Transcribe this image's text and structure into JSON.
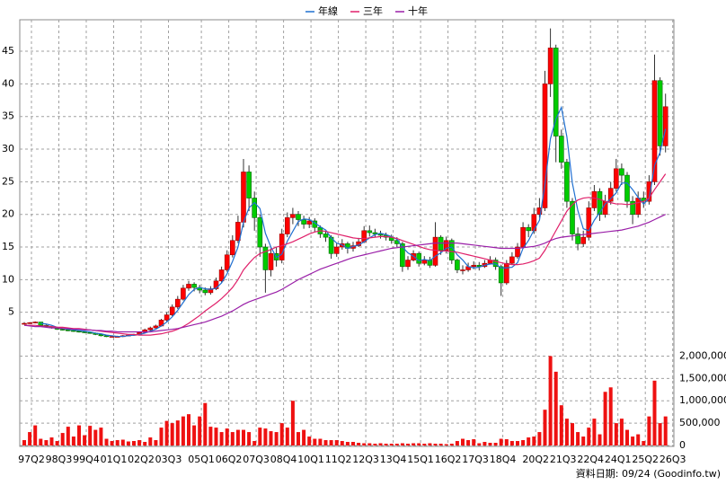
{
  "chart_data": {
    "type": "candlestick",
    "source": "資料日期: 09/24 (Goodinfo.tw)",
    "legend": "top",
    "grid": true,
    "up_color": "#ff0000",
    "down_color": "#00cc00",
    "categories": [
      "97Q2",
      null,
      null,
      null,
      null,
      "98Q3",
      null,
      null,
      null,
      null,
      "99Q4",
      null,
      null,
      null,
      null,
      "01Q1",
      null,
      null,
      null,
      null,
      "02Q2",
      null,
      null,
      null,
      null,
      "03Q3",
      null,
      null,
      null,
      null,
      null,
      "05Q1",
      null,
      null,
      null,
      null,
      "06Q2",
      null,
      null,
      null,
      null,
      "07Q3",
      null,
      null,
      null,
      null,
      "08Q4",
      null,
      null,
      null,
      null,
      "10Q1",
      null,
      null,
      null,
      null,
      "11Q2",
      null,
      null,
      null,
      null,
      "12Q3",
      null,
      null,
      null,
      null,
      "13Q4",
      null,
      null,
      null,
      null,
      "15Q1",
      null,
      null,
      null,
      null,
      "16Q2",
      null,
      null,
      null,
      null,
      "17Q3",
      null,
      null,
      null,
      null,
      "18Q4",
      null,
      null,
      null,
      null,
      null,
      "20Q2",
      null,
      null,
      null,
      null,
      "21Q3",
      null,
      null,
      null,
      null,
      "22Q4",
      null,
      null,
      null,
      null,
      "24Q1",
      null,
      null,
      null,
      null,
      "25Q2",
      null,
      null,
      null,
      null,
      "26Q3"
    ],
    "open": [
      3.2,
      3.3,
      3.4,
      3.5,
      3.0,
      2.8,
      2.6,
      2.4,
      2.3,
      2.2,
      2.1,
      2.0,
      1.9,
      1.8,
      1.6,
      1.4,
      1.3,
      1.3,
      1.3,
      1.4,
      1.5,
      1.6,
      1.9,
      2.3,
      2.6,
      2.9,
      3.8,
      4.6,
      5.8,
      7.0,
      8.7,
      9.3,
      8.8,
      8.4,
      8.0,
      8.6,
      9.8,
      11.5,
      13.8,
      16.0,
      18.8,
      26.5,
      22.5,
      19.5,
      15.0,
      11.5,
      14.0,
      13.0,
      17.0,
      19.5,
      20.0,
      19.2,
      18.5,
      19.0,
      18.0,
      17.0,
      16.5,
      14.0,
      15.0,
      15.5,
      14.8,
      15.2,
      15.8,
      17.5,
      17.2,
      17.0,
      16.8,
      16.5,
      16.0,
      15.5,
      12.0,
      13.0,
      14.0,
      12.5,
      13.0,
      12.2,
      16.5,
      14.5,
      16.0,
      13.0,
      11.5,
      11.5,
      12.0,
      12.2,
      12.0,
      12.5,
      13.0,
      12.0,
      9.5,
      12.5,
      13.5,
      15.0,
      18.0,
      17.5,
      20.0,
      21.0,
      40.0,
      45.5,
      32.0,
      28.0,
      22.0,
      17.0,
      15.5,
      16.5,
      21.0,
      23.5,
      20.0,
      22.0,
      24.0,
      27.0,
      26.0,
      22.0,
      20.0,
      22.5,
      22.0,
      25.0,
      40.5,
      30.5
    ],
    "high": [
      3.5,
      3.5,
      3.6,
      3.5,
      3.1,
      2.9,
      2.7,
      2.5,
      2.4,
      2.3,
      2.2,
      2.1,
      2.0,
      1.9,
      1.7,
      1.5,
      1.4,
      1.4,
      1.5,
      1.6,
      1.7,
      2.0,
      2.5,
      2.8,
      3.1,
      4.0,
      5.0,
      6.2,
      7.5,
      9.2,
      9.8,
      9.6,
      9.2,
      8.8,
      9.0,
      10.3,
      12.0,
      14.5,
      16.8,
      19.8,
      28.5,
      27.5,
      23.5,
      20.0,
      15.5,
      14.8,
      15.0,
      17.8,
      20.3,
      21.0,
      20.5,
      19.8,
      19.6,
      19.4,
      18.3,
      17.5,
      16.8,
      15.6,
      16.2,
      15.8,
      15.8,
      16.4,
      18.2,
      18.3,
      17.8,
      17.5,
      17.2,
      16.9,
      16.5,
      15.8,
      13.6,
      14.5,
      14.3,
      13.6,
      13.5,
      18.8,
      16.8,
      16.6,
      16.3,
      13.2,
      12.2,
      12.6,
      12.8,
      12.7,
      13.0,
      13.6,
      13.4,
      12.3,
      13.0,
      14.2,
      15.6,
      18.8,
      18.5,
      21.0,
      22.5,
      42.0,
      48.5,
      46.0,
      33.0,
      28.5,
      22.5,
      18.0,
      17.5,
      22.0,
      24.5,
      24.0,
      23.0,
      25.0,
      28.5,
      27.8,
      26.5,
      22.8,
      23.5,
      23.5,
      26.0,
      44.5,
      41.0,
      38.5
    ],
    "low": [
      3.1,
      3.2,
      3.3,
      2.9,
      2.7,
      2.5,
      2.3,
      2.2,
      2.1,
      2.0,
      1.9,
      1.8,
      1.7,
      1.5,
      1.3,
      1.2,
      1.2,
      1.2,
      1.2,
      1.3,
      1.4,
      1.5,
      1.8,
      2.2,
      2.5,
      2.8,
      3.6,
      4.4,
      5.5,
      6.8,
      8.3,
      8.2,
      7.9,
      7.6,
      7.7,
      8.4,
      9.5,
      11.2,
      13.4,
      15.6,
      18.0,
      20.5,
      17.5,
      13.5,
      8.0,
      10.5,
      12.0,
      12.5,
      16.5,
      18.5,
      18.2,
      17.8,
      17.9,
      17.3,
      16.4,
      15.8,
      13.2,
      13.5,
      14.6,
      14.0,
      14.3,
      15.0,
      15.6,
      16.6,
      16.5,
      16.3,
      16.0,
      15.5,
      15.0,
      11.2,
      11.5,
      12.8,
      12.0,
      12.2,
      11.8,
      12.0,
      13.8,
      14.0,
      12.4,
      11.0,
      10.8,
      11.2,
      11.6,
      11.4,
      11.8,
      12.3,
      11.5,
      7.5,
      9.2,
      12.3,
      13.2,
      14.8,
      16.5,
      17.0,
      19.5,
      20.5,
      38.0,
      28.0,
      27.0,
      21.0,
      16.0,
      14.5,
      15.0,
      16.0,
      20.5,
      19.0,
      19.5,
      21.5,
      23.5,
      24.5,
      21.0,
      18.5,
      19.5,
      21.0,
      21.5,
      24.5,
      29.0,
      29.5
    ],
    "close": [
      3.3,
      3.4,
      3.5,
      3.0,
      2.8,
      2.6,
      2.4,
      2.3,
      2.2,
      2.1,
      2.0,
      1.9,
      1.8,
      1.6,
      1.4,
      1.3,
      1.3,
      1.3,
      1.4,
      1.5,
      1.6,
      1.9,
      2.3,
      2.6,
      2.9,
      3.8,
      4.6,
      5.8,
      7.0,
      8.7,
      9.3,
      8.8,
      8.4,
      8.0,
      8.6,
      9.8,
      11.5,
      13.8,
      16.0,
      18.8,
      26.5,
      22.5,
      19.5,
      15.0,
      11.5,
      14.0,
      13.0,
      17.0,
      19.5,
      20.0,
      19.2,
      18.5,
      19.0,
      18.0,
      17.0,
      16.5,
      14.0,
      15.0,
      15.5,
      14.8,
      15.2,
      15.8,
      17.5,
      17.2,
      17.0,
      16.8,
      16.5,
      16.0,
      15.5,
      12.0,
      13.0,
      14.0,
      12.5,
      13.0,
      12.2,
      16.5,
      14.5,
      16.0,
      13.0,
      11.5,
      11.5,
      12.0,
      12.2,
      12.0,
      12.5,
      13.0,
      12.0,
      9.5,
      12.5,
      13.5,
      15.0,
      18.0,
      17.5,
      20.0,
      21.0,
      40.0,
      45.5,
      32.0,
      28.0,
      22.0,
      17.0,
      15.5,
      16.5,
      21.0,
      23.5,
      20.0,
      22.0,
      24.0,
      27.0,
      26.0,
      22.0,
      20.0,
      22.5,
      22.0,
      25.0,
      40.5,
      30.5,
      36.5
    ],
    "ylim": [
      0,
      49
    ],
    "yticks": [
      5,
      10,
      15,
      20,
      25,
      30,
      35,
      40,
      45
    ],
    "series": [
      {
        "name": "年線",
        "color": "#1f6fd0",
        "values": [
          null,
          null,
          null,
          3.3,
          3.2,
          3.0,
          2.7,
          2.5,
          2.4,
          2.3,
          2.2,
          2.1,
          2.0,
          1.8,
          1.7,
          1.5,
          1.4,
          1.3,
          1.3,
          1.4,
          1.5,
          1.6,
          1.8,
          2.1,
          2.4,
          2.9,
          3.5,
          4.3,
          5.3,
          6.5,
          7.7,
          8.5,
          8.8,
          8.6,
          8.5,
          8.7,
          9.5,
          10.9,
          12.8,
          15.0,
          18.8,
          21.0,
          21.8,
          20.9,
          17.1,
          15.0,
          13.4,
          13.9,
          15.9,
          17.4,
          18.9,
          19.3,
          19.2,
          18.7,
          18.1,
          17.6,
          16.4,
          15.6,
          15.3,
          14.8,
          15.1,
          15.3,
          15.8,
          16.4,
          16.9,
          17.1,
          16.9,
          16.6,
          16.2,
          15.0,
          14.1,
          13.6,
          12.9,
          13.1,
          12.9,
          13.6,
          14.1,
          14.8,
          15.0,
          13.8,
          13.0,
          12.0,
          11.8,
          11.9,
          12.2,
          12.4,
          12.4,
          11.8,
          11.8,
          11.9,
          12.6,
          14.8,
          16.0,
          17.6,
          19.1,
          24.6,
          31.6,
          34.6,
          36.4,
          31.9,
          24.8,
          20.6,
          17.8,
          17.5,
          19.1,
          20.3,
          21.6,
          22.4,
          23.3,
          24.8,
          24.8,
          23.8,
          22.6,
          21.6,
          22.4,
          27.5,
          29.5,
          33.1
        ]
      },
      {
        "name": "三年",
        "color": "#e0206a",
        "values": [
          3.0,
          3.0,
          3.0,
          2.9,
          2.9,
          2.8,
          2.7,
          2.7,
          2.6,
          2.5,
          2.5,
          2.4,
          2.3,
          2.2,
          2.1,
          2.0,
          1.9,
          1.8,
          1.7,
          1.6,
          1.6,
          1.5,
          1.5,
          1.5,
          1.6,
          1.7,
          1.9,
          2.1,
          2.4,
          2.8,
          3.3,
          3.9,
          4.5,
          5.2,
          5.8,
          6.4,
          7.1,
          7.9,
          8.8,
          10.0,
          11.5,
          12.5,
          13.4,
          14.0,
          14.3,
          14.6,
          15.0,
          15.2,
          15.5,
          15.8,
          16.2,
          16.6,
          17.0,
          17.3,
          17.5,
          17.4,
          17.2,
          17.0,
          16.8,
          16.6,
          16.4,
          16.3,
          16.3,
          16.4,
          16.5,
          16.6,
          16.6,
          16.5,
          16.3,
          16.0,
          15.7,
          15.4,
          15.1,
          14.8,
          14.6,
          14.5,
          14.4,
          14.4,
          14.3,
          14.2,
          14.0,
          13.8,
          13.6,
          13.4,
          13.2,
          13.0,
          12.8,
          12.6,
          12.4,
          12.3,
          12.3,
          12.4,
          12.6,
          12.9,
          13.3,
          14.5,
          16.0,
          17.5,
          19.0,
          20.5,
          21.5,
          22.2,
          22.5,
          22.6,
          22.5,
          22.3,
          22.0,
          21.8,
          21.6,
          21.6,
          21.5,
          21.6,
          21.8,
          22.0,
          22.5,
          23.8,
          25.0,
          26.2
        ]
      },
      {
        "name": "十年",
        "color": "#9a1fa8",
        "values": [
          3.0,
          2.9,
          2.8,
          2.8,
          2.7,
          2.6,
          2.6,
          2.5,
          2.5,
          2.4,
          2.4,
          2.3,
          2.3,
          2.2,
          2.2,
          2.1,
          2.1,
          2.0,
          2.0,
          2.0,
          2.0,
          2.0,
          2.0,
          2.0,
          2.1,
          2.2,
          2.3,
          2.4,
          2.5,
          2.7,
          2.9,
          3.1,
          3.3,
          3.5,
          3.8,
          4.1,
          4.4,
          4.8,
          5.2,
          5.7,
          6.2,
          6.6,
          6.9,
          7.2,
          7.5,
          7.8,
          8.1,
          8.5,
          9.0,
          9.5,
          10.0,
          10.4,
          10.8,
          11.2,
          11.6,
          11.9,
          12.2,
          12.5,
          12.8,
          13.1,
          13.4,
          13.6,
          13.8,
          14.0,
          14.2,
          14.4,
          14.6,
          14.8,
          14.9,
          15.0,
          15.1,
          15.2,
          15.3,
          15.4,
          15.5,
          15.6,
          15.6,
          15.6,
          15.6,
          15.6,
          15.5,
          15.4,
          15.3,
          15.2,
          15.1,
          15.0,
          14.9,
          14.8,
          14.8,
          14.8,
          14.8,
          14.9,
          15.0,
          15.1,
          15.3,
          15.6,
          16.0,
          16.3,
          16.5,
          16.6,
          16.7,
          16.8,
          16.9,
          17.0,
          17.1,
          17.2,
          17.3,
          17.4,
          17.5,
          17.6,
          17.8,
          18.0,
          18.2,
          18.5,
          18.8,
          19.2,
          19.6,
          20.0
        ]
      }
    ],
    "volume": {
      "color": "#ee1111",
      "ylim": [
        0,
        2250000
      ],
      "yticks": [
        0,
        {
          "value": 500000,
          "label": "500,000"
        },
        {
          "value": 1000000,
          "label": "1,000,000"
        },
        {
          "value": 1500000,
          "label": "1,500,000"
        },
        {
          "value": 2000000,
          "label": "2,000,000"
        }
      ],
      "values": [
        120000,
        300000,
        450000,
        150000,
        120000,
        180000,
        100000,
        280000,
        420000,
        200000,
        450000,
        230000,
        440000,
        350000,
        400000,
        150000,
        100000,
        120000,
        130000,
        90000,
        100000,
        120000,
        80000,
        180000,
        120000,
        400000,
        550000,
        500000,
        560000,
        650000,
        700000,
        450000,
        650000,
        950000,
        420000,
        400000,
        300000,
        380000,
        300000,
        350000,
        350000,
        300000,
        100000,
        400000,
        380000,
        320000,
        300000,
        500000,
        400000,
        1000000,
        300000,
        350000,
        200000,
        150000,
        150000,
        120000,
        120000,
        120000,
        100000,
        80000,
        80000,
        60000,
        50000,
        50000,
        40000,
        50000,
        40000,
        40000,
        40000,
        50000,
        40000,
        50000,
        50000,
        40000,
        50000,
        40000,
        40000,
        30000,
        40000,
        100000,
        150000,
        120000,
        140000,
        50000,
        80000,
        60000,
        60000,
        150000,
        140000,
        100000,
        100000,
        120000,
        180000,
        200000,
        300000,
        800000,
        2000000,
        1650000,
        900000,
        600000,
        500000,
        300000,
        200000,
        400000,
        600000,
        250000,
        1200000,
        1300000,
        500000,
        600000,
        350000,
        200000,
        250000,
        100000,
        650000,
        1450000,
        500000,
        650000
      ]
    }
  }
}
